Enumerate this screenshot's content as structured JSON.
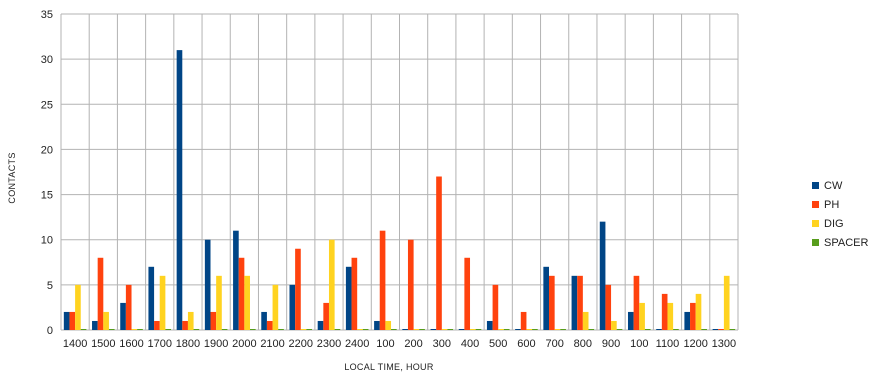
{
  "chart_data": {
    "type": "bar",
    "title": "",
    "xlabel": "LOCAL TIME, HOUR",
    "ylabel": "CONTACTS",
    "ylim": [
      0,
      35
    ],
    "yticks": [
      0,
      5,
      10,
      15,
      20,
      25,
      30,
      35
    ],
    "grid": true,
    "legend_position": "right",
    "categories": [
      "1400",
      "1500",
      "1600",
      "1700",
      "1800",
      "1900",
      "2000",
      "2100",
      "2200",
      "2300",
      "2400",
      "100",
      "200",
      "300",
      "400",
      "500",
      "600",
      "700",
      "800",
      "900",
      "100",
      "1100",
      "1200",
      "1300"
    ],
    "series": [
      {
        "name": "CW",
        "color": "#004586",
        "values": [
          2,
          1,
          3,
          7,
          31,
          10,
          11,
          2,
          5,
          1,
          7,
          1,
          0,
          0,
          0,
          1,
          0,
          7,
          6,
          12,
          2,
          0,
          2,
          0
        ]
      },
      {
        "name": "PH",
        "color": "#ff420e",
        "values": [
          2,
          8,
          5,
          1,
          1,
          2,
          8,
          1,
          9,
          3,
          8,
          11,
          10,
          17,
          8,
          5,
          2,
          6,
          6,
          5,
          6,
          4,
          3,
          0
        ]
      },
      {
        "name": "DIG",
        "color": "#ffd320",
        "values": [
          5,
          2,
          0,
          6,
          2,
          6,
          6,
          5,
          0,
          10,
          0,
          1,
          0,
          0,
          0,
          0,
          0,
          0,
          2,
          1,
          3,
          3,
          4,
          6
        ]
      },
      {
        "name": "SPACER",
        "color": "#579d1c",
        "values": [
          0,
          0,
          0,
          0,
          0,
          0,
          0,
          0,
          0,
          0,
          0,
          0,
          0,
          0,
          0,
          0,
          0,
          0,
          0,
          0,
          0,
          0,
          0,
          0
        ]
      }
    ]
  }
}
